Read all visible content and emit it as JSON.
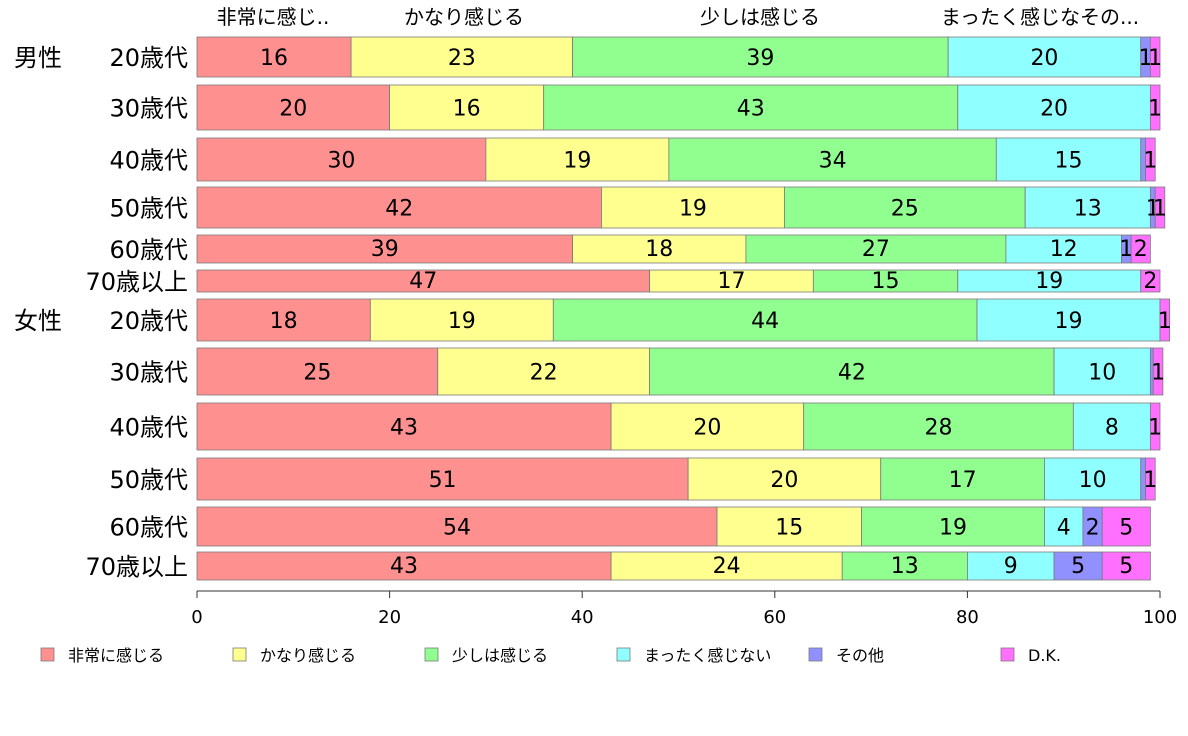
{
  "chart_data": {
    "type": "bar",
    "orientation": "horizontal",
    "stacked": true,
    "xlim": [
      0,
      100
    ],
    "xticks": [
      0,
      20,
      40,
      60,
      80,
      100
    ],
    "grid": false,
    "legend_position": "bottom",
    "top_labels": [
      "非常に感じ..",
      "かなり感じる",
      "少しは感じる",
      "まったく感じなその..."
    ],
    "groups": [
      {
        "label": "男性",
        "row_start": 0
      },
      {
        "label": "女性",
        "row_start": 6
      }
    ],
    "categories": [
      "20歳代",
      "30歳代",
      "40歳代",
      "50歳代",
      "60歳代",
      "70歳以上",
      "20歳代",
      "30歳代",
      "40歳代",
      "50歳代",
      "60歳代",
      "70歳以上"
    ],
    "series": [
      {
        "name": "非常に感じる",
        "color": "#ff9090",
        "values": [
          16,
          20,
          30,
          42,
          39,
          47,
          18,
          25,
          43,
          51,
          54,
          43
        ]
      },
      {
        "name": "かなり感じる",
        "color": "#ffff90",
        "values": [
          23,
          16,
          19,
          19,
          18,
          17,
          19,
          22,
          20,
          20,
          15,
          24
        ]
      },
      {
        "name": "少しは感じる",
        "color": "#90ff90",
        "values": [
          39,
          43,
          34,
          25,
          27,
          15,
          44,
          42,
          28,
          17,
          19,
          13
        ]
      },
      {
        "name": "まったく感じない",
        "color": "#90ffff",
        "values": [
          20,
          20,
          15,
          13,
          12,
          19,
          19,
          10,
          8,
          10,
          4,
          9
        ]
      },
      {
        "name": "その他",
        "color": "#9090ff",
        "values": [
          1,
          0,
          0.5,
          0.5,
          1,
          0,
          0,
          0.3,
          0,
          0.5,
          2,
          5
        ]
      },
      {
        "name": "D.K.",
        "color": "#ff70ff",
        "values": [
          1,
          1,
          1,
          1,
          2,
          2,
          1,
          1,
          1,
          1,
          5,
          5
        ]
      }
    ],
    "value_labels": [
      [
        "16",
        "23",
        "39",
        "20",
        "1",
        "1"
      ],
      [
        "20",
        "16",
        "43",
        "20",
        "",
        "1"
      ],
      [
        "30",
        "19",
        "34",
        "15",
        "",
        "1"
      ],
      [
        "42",
        "19",
        "25",
        "13",
        "1",
        "1"
      ],
      [
        "39",
        "18",
        "27",
        "12",
        "1",
        "2"
      ],
      [
        "47",
        "17",
        "15",
        "19",
        "",
        "2"
      ],
      [
        "18",
        "19",
        "44",
        "19",
        "",
        "1"
      ],
      [
        "25",
        "22",
        "42",
        "10",
        "",
        "1"
      ],
      [
        "43",
        "20",
        "28",
        "8",
        "",
        "1"
      ],
      [
        "51",
        "20",
        "17",
        "10",
        "",
        "1"
      ],
      [
        "54",
        "15",
        "19",
        "4",
        "2",
        "5"
      ],
      [
        "43",
        "24",
        "13",
        "9",
        "5",
        "5"
      ]
    ]
  }
}
